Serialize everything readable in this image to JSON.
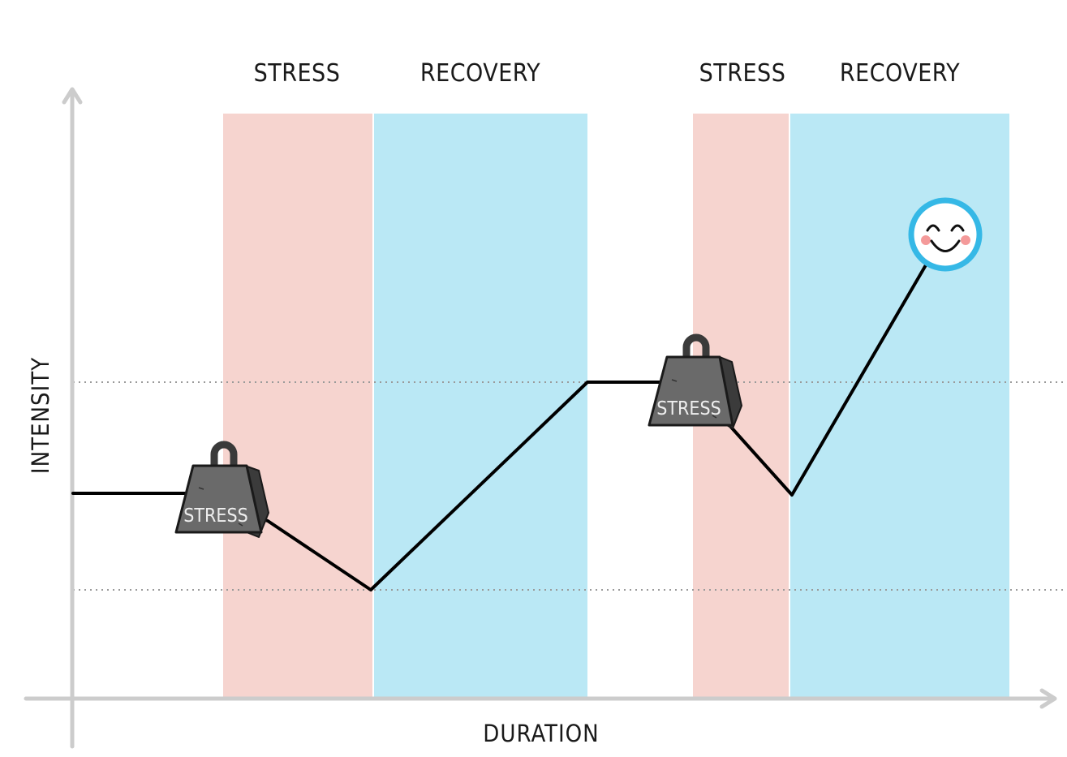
{
  "phase_labels": [
    "STRESS",
    "RECOVERY",
    "STRESS",
    "RECOVERY"
  ],
  "axes": {
    "y_label": "INTENSITY",
    "x_label": "DURATION"
  },
  "weights": [
    {
      "label": "STRESS"
    },
    {
      "label": "STRESS"
    }
  ],
  "end_marker": "smiley-face",
  "colors": {
    "stress_band": "#f6d4cf",
    "recovery_band": "#bae8f5",
    "axis": "#cccccc",
    "curve": "#000000",
    "weight": "#696969",
    "smiley_ring": "#35b8e6"
  }
}
